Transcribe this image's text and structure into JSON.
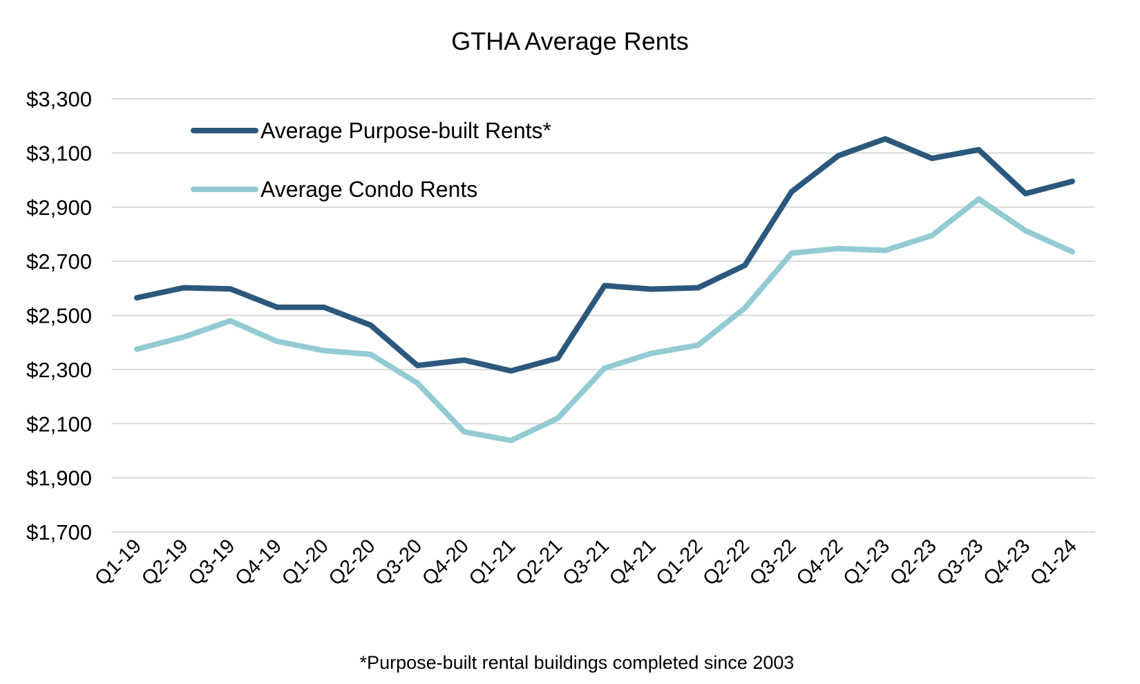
{
  "chart_data": {
    "type": "line",
    "title": "GTHA Average Rents",
    "xlabel": "",
    "ylabel": "",
    "categories": [
      "Q1-19",
      "Q2-19",
      "Q3-19",
      "Q4-19",
      "Q1-20",
      "Q2-20",
      "Q3-20",
      "Q4-20",
      "Q1-21",
      "Q2-21",
      "Q3-21",
      "Q4-21",
      "Q1-22",
      "Q2-22",
      "Q3-22",
      "Q4-22",
      "Q1-23",
      "Q2-23",
      "Q3-23",
      "Q4-23",
      "Q1-24"
    ],
    "series": [
      {
        "name": "Average Purpose-built Rents*",
        "color": "#2b587c",
        "values": [
          2565,
          2602,
          2598,
          2530,
          2530,
          2464,
          2315,
          2335,
          2295,
          2342,
          2610,
          2597,
          2602,
          2685,
          2957,
          3090,
          3152,
          3080,
          3112,
          2950,
          2995
        ]
      },
      {
        "name": "Average Condo Rents",
        "color": "#93cbd3",
        "values": [
          2375,
          2420,
          2480,
          2404,
          2370,
          2356,
          2250,
          2070,
          2038,
          2120,
          2305,
          2360,
          2390,
          2527,
          2730,
          2747,
          2740,
          2795,
          2930,
          2813,
          2735
        ]
      }
    ],
    "ylim": [
      1700,
      3300
    ],
    "y_ticks": [
      1700,
      1900,
      2100,
      2300,
      2500,
      2700,
      2900,
      3100,
      3300
    ],
    "y_tick_labels": [
      "$1,700",
      "$1,900",
      "$2,100",
      "$2,300",
      "$2,500",
      "$2,700",
      "$2,900",
      "$3,100",
      "$3,300"
    ],
    "grid": true,
    "legend_position": "top-left",
    "footnote": "*Purpose-built rental buildings completed since 2003"
  }
}
